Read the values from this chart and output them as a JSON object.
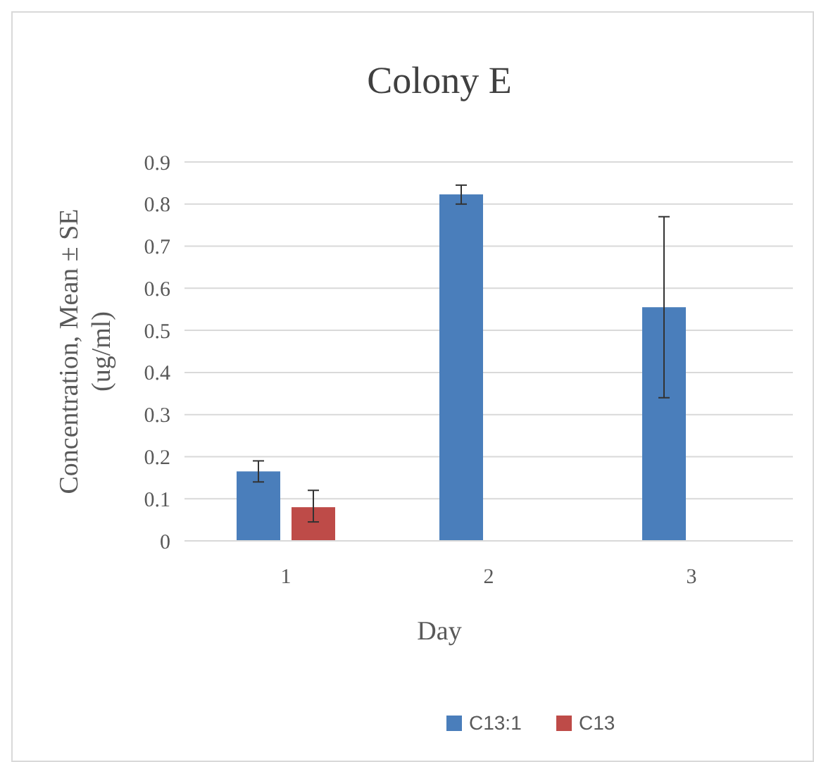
{
  "chart_data": {
    "type": "bar",
    "title": "Colony E",
    "xlabel": "Day",
    "ylabel": "Concentration, Mean ± SE\n(ug/ml)",
    "categories": [
      "1",
      "2",
      "3"
    ],
    "series": [
      {
        "name": "C13:1",
        "color": "#4a7ebb",
        "values": [
          0.165,
          0.823,
          0.555
        ],
        "errors": [
          [
            0.14,
            0.19
          ],
          [
            0.8,
            0.845
          ],
          [
            0.34,
            0.77
          ]
        ]
      },
      {
        "name": "C13",
        "color": "#be4b48",
        "values": [
          0.08,
          null,
          null
        ],
        "errors": [
          [
            0.045,
            0.12
          ],
          null,
          null
        ]
      }
    ],
    "ylim": [
      0,
      0.9
    ],
    "yticks": [
      0,
      0.1,
      0.2,
      0.3,
      0.4,
      0.5,
      0.6,
      0.7,
      0.8,
      0.9
    ],
    "grid": "y",
    "legend": "bottom"
  }
}
